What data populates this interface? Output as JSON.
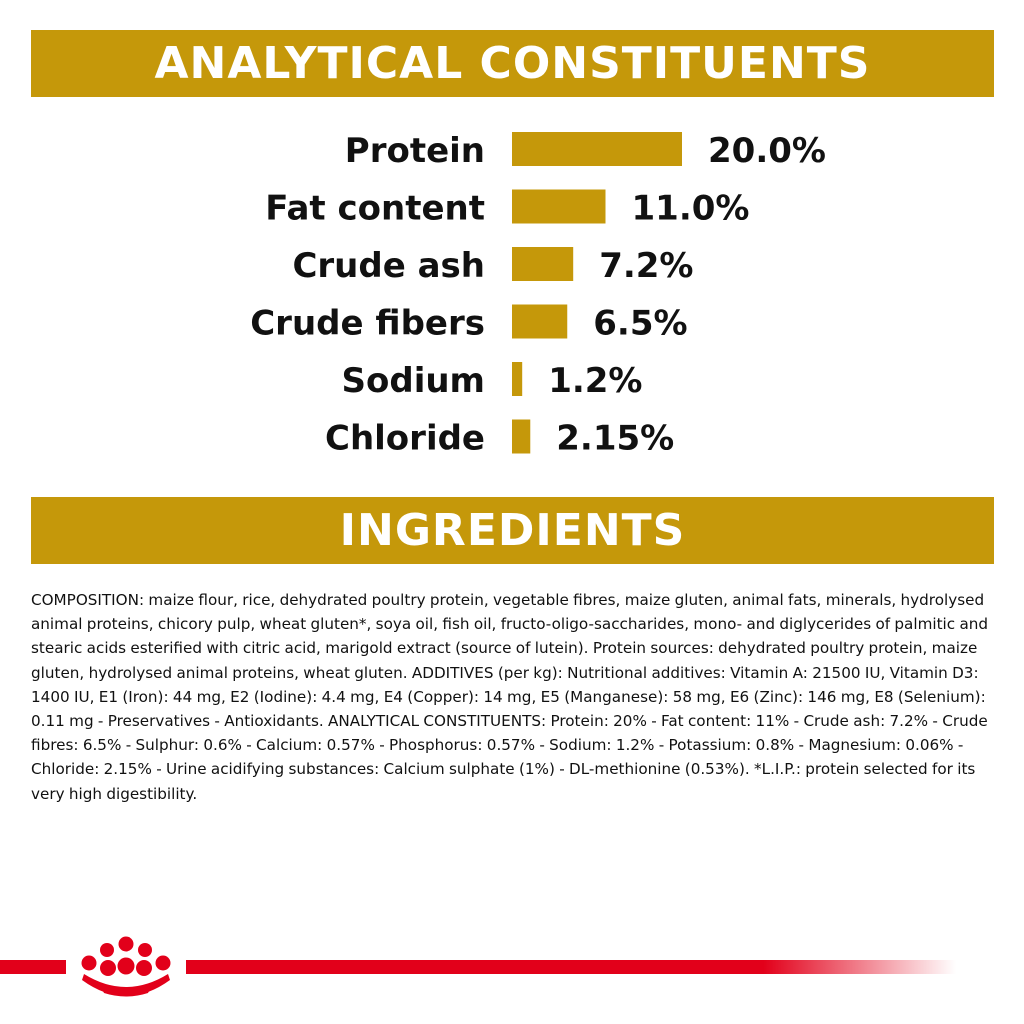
{
  "header_title": "ANALYTICAL CONSTITUENTS",
  "ingredients_title": "INGREDIENTS",
  "colors": {
    "banner": "#c5980a",
    "bar": "#c5980a",
    "brand_red": "#e2001a"
  },
  "chart_data": {
    "type": "bar",
    "orientation": "horizontal",
    "categories": [
      "Protein",
      "Fat content",
      "Crude ash",
      "Crude fibers",
      "Sodium",
      "Chloride"
    ],
    "values": [
      20.0,
      11.0,
      7.2,
      6.5,
      1.2,
      2.15
    ],
    "value_labels": [
      "20.0%",
      "11.0%",
      "7.2%",
      "6.5%",
      "1.2%",
      "2.15%"
    ],
    "unit": "%",
    "title": "ANALYTICAL CONSTITUENTS",
    "xlabel": "",
    "ylabel": "",
    "grid": false,
    "legend": "none"
  },
  "composition_text": "COMPOSITION: maize flour, rice, dehydrated poultry protein, vegetable fibres, maize gluten, animal fats, minerals, hydrolysed animal proteins, chicory pulp, wheat gluten*, soya oil, fish oil, fructo-oligo-saccharides, mono- and diglycerides of palmitic and stearic acids esterified with citric acid, marigold extract (source of lutein). Protein sources: dehydrated poultry protein, maize gluten, hydrolysed animal proteins, wheat gluten. ADDITIVES (per kg): Nutritional additives: Vitamin A: 21500 IU, Vitamin D3: 1400 IU, E1 (Iron): 44 mg, E2 (Iodine): 4.4 mg, E4 (Copper): 14 mg, E5 (Manganese): 58 mg, E6 (Zinc): 146 mg, E8 (Selenium): 0.11 mg - Preservatives - Antioxidants. ANALYTICAL CONSTITUENTS: Protein: 20% - Fat content: 11% - Crude ash: 7.2% - Crude fibres: 6.5% - Sulphur: 0.6% - Calcium: 0.57% - Phosphorus: 0.57% - Sodium: 1.2% - Potassium: 0.8% - Magnesium: 0.06% - Chloride: 2.15% - Urine acidifying substances: Calcium sulphate (1%) - DL-methionine (0.53%). *L.I.P.: protein selected for its very high digestibility.",
  "brand_logo": "royal-canin-crown-logo"
}
